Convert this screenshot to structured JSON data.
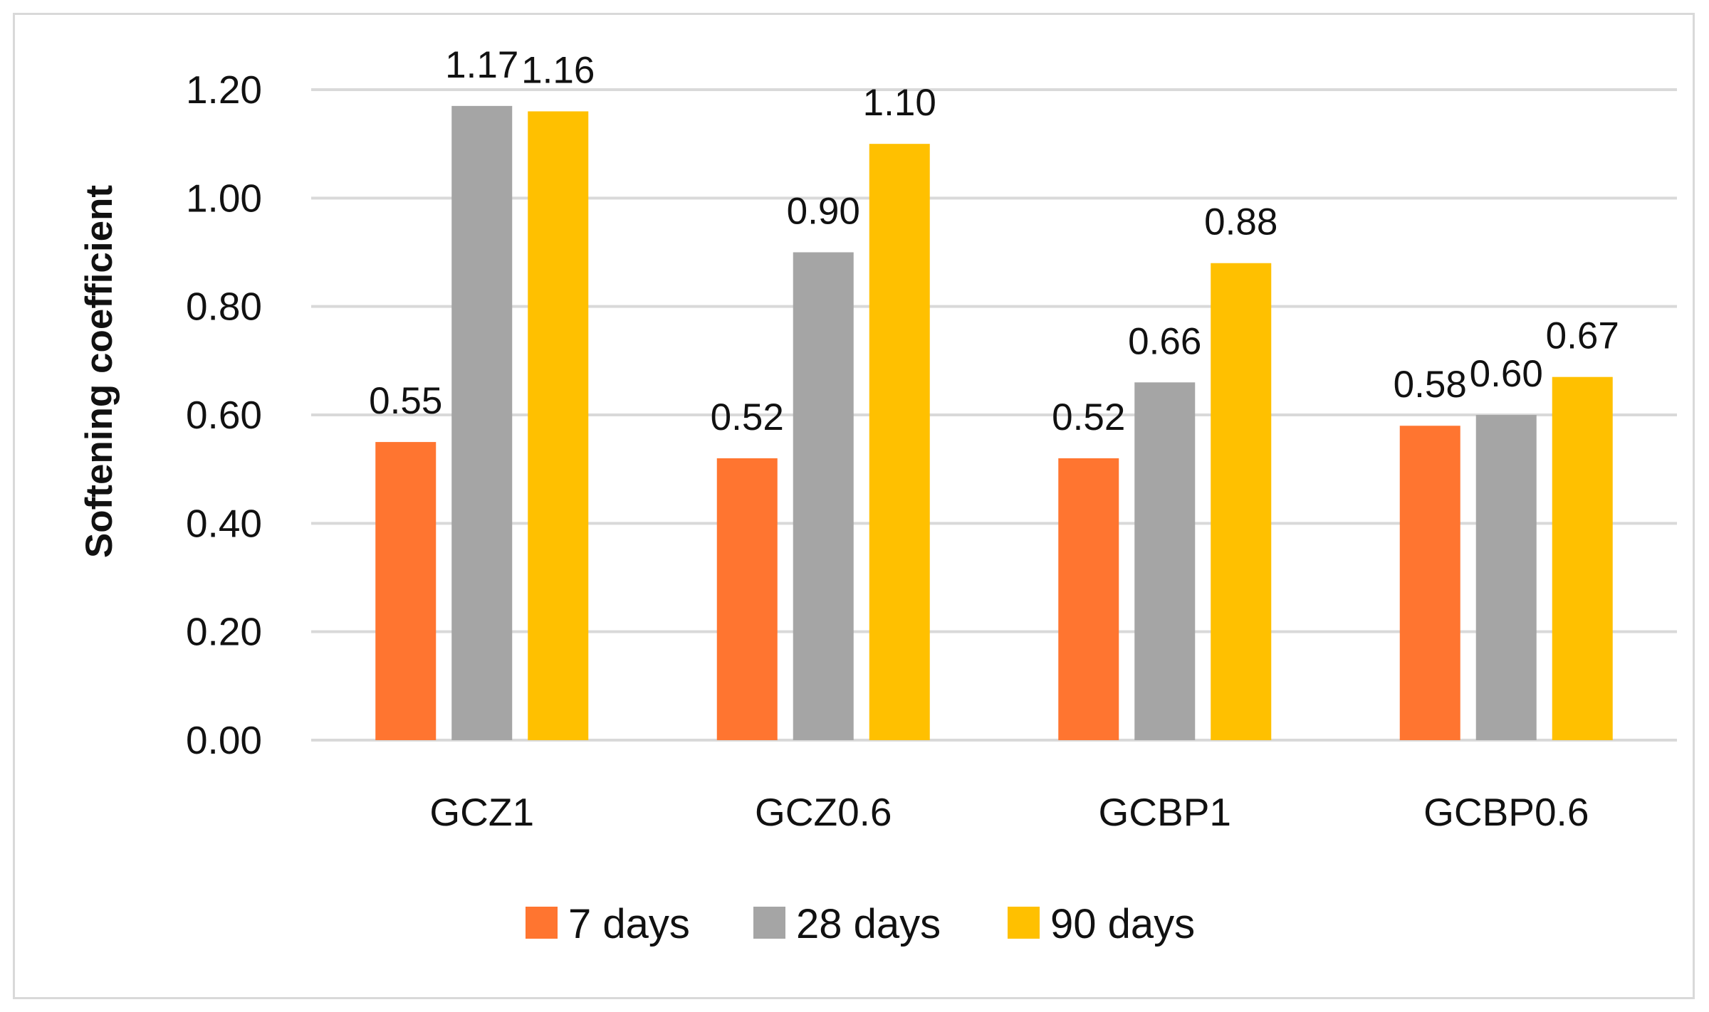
{
  "chart_data": {
    "type": "bar",
    "title": "",
    "xlabel": "",
    "ylabel": "Softening coefficient",
    "ylim": [
      0,
      1.2
    ],
    "yticks": [
      "0.00",
      "0.20",
      "0.40",
      "0.60",
      "0.80",
      "1.00",
      "1.20"
    ],
    "grid": true,
    "legend_position": "bottom",
    "categories": [
      "GCZ1",
      "GCZ0.6",
      "GCBP1",
      "GCBP0.6"
    ],
    "series": [
      {
        "name": "7 days",
        "color": "#FF7530",
        "values": [
          0.55,
          0.52,
          0.52,
          0.58
        ],
        "labels": [
          "0.55",
          "0.52",
          "0.52",
          "0.58"
        ]
      },
      {
        "name": "28 days",
        "color": "#A5A5A5",
        "values": [
          1.17,
          0.9,
          0.66,
          0.6
        ],
        "labels": [
          "1.17",
          "0.90",
          "0.66",
          "0.60"
        ]
      },
      {
        "name": "90 days",
        "color": "#FFC000",
        "values": [
          1.16,
          1.1,
          0.88,
          0.67
        ],
        "labels": [
          "1.16",
          "1.10",
          "0.88",
          "0.67"
        ]
      }
    ]
  }
}
